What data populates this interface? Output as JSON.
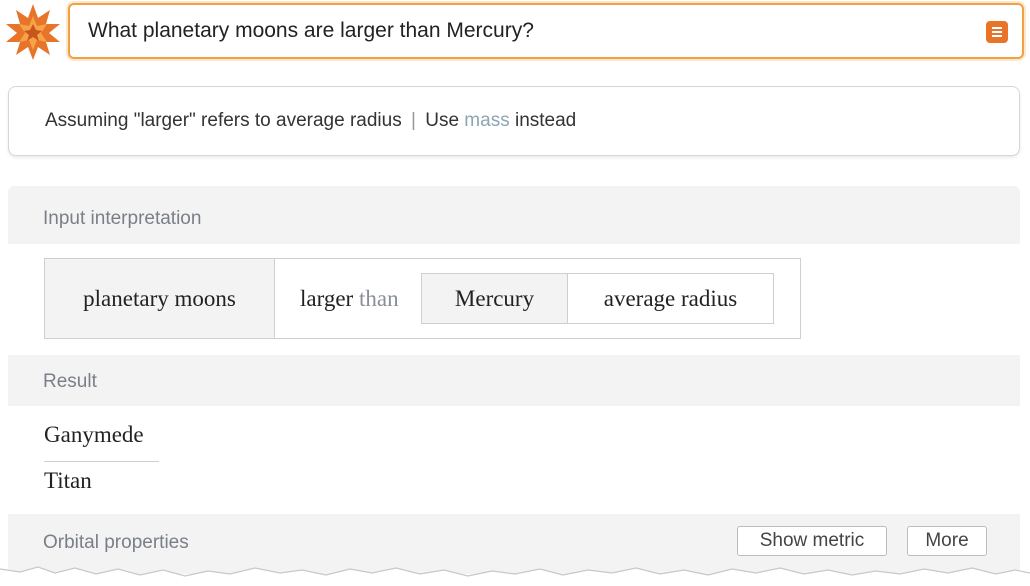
{
  "search": {
    "query": "What planetary moons are larger than Mercury?"
  },
  "assumption": {
    "text": "Assuming \"larger\" refers to average radius",
    "separator": "|",
    "use_prefix": "Use",
    "alternative": "mass",
    "suffix": "instead"
  },
  "pods": {
    "input_interpretation": {
      "title": "Input interpretation",
      "subject": "planetary moons",
      "relation_main": "larger",
      "relation_gray": "than",
      "object": "Mercury",
      "property": "average radius"
    },
    "result": {
      "title": "Result",
      "items": [
        "Ganymede",
        "Titan"
      ]
    },
    "orbital": {
      "title": "Orbital properties",
      "show_metric_label": "Show metric",
      "more_label": "More"
    }
  },
  "colors": {
    "accent": "#f0a142",
    "logo": "#e8742a",
    "link": "#8ca6b3",
    "pod_title": "#7a7f87"
  }
}
